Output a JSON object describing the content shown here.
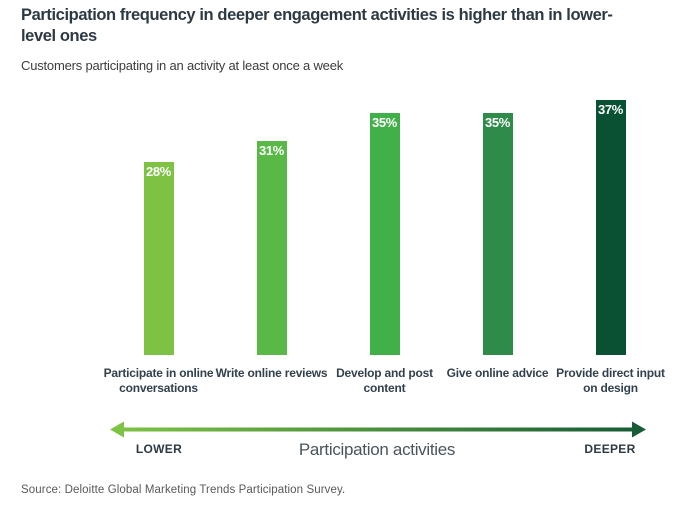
{
  "header": {
    "title": "Participation frequency in deeper engagement activities is higher than in lower-level ones",
    "subtitle": "Customers participating in an activity at least once a week"
  },
  "chart_data": {
    "type": "bar",
    "title": "Participation frequency in deeper engagement activities is higher than in lower-level ones",
    "subtitle": "Customers participating in an activity at least once a week",
    "categories": [
      "Participate in online conversations",
      "Write online reviews",
      "Develop and post content",
      "Give online advice",
      "Provide direct input on design"
    ],
    "values": [
      28,
      31,
      35,
      35,
      37
    ],
    "value_labels": [
      "28%",
      "31%",
      "35%",
      "35%",
      "37%"
    ],
    "bar_colors": [
      "#7dc243",
      "#58b947",
      "#41b049",
      "#2f8b4a",
      "#0a5133"
    ],
    "value_label_color": "#ffffff",
    "xlabel": "Participation activities",
    "ylabel": "",
    "ylim": [
      0,
      40
    ],
    "grid": false,
    "legend": false,
    "axis_arrow": {
      "left_label": "LOWER",
      "right_label": "DEEPER",
      "center_label": "Participation activities",
      "gradient_start": "#7dc243",
      "gradient_end": "#175c36"
    }
  },
  "footer": {
    "source": "Source: Deloitte Global Marketing Trends Participation Survey."
  }
}
